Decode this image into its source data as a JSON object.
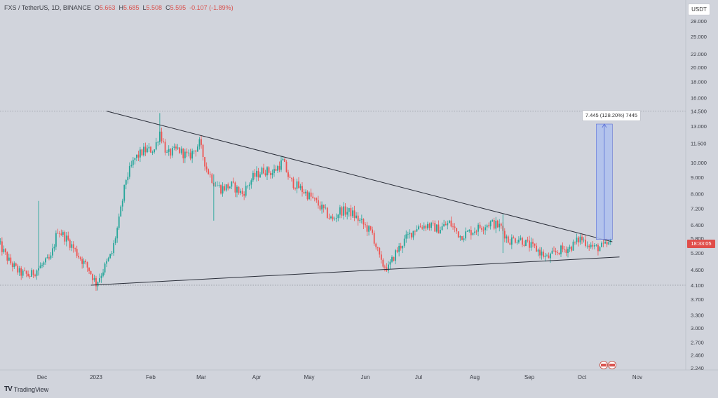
{
  "header": {
    "symbol": "FXS / TetherUS, 1D, BINANCE",
    "open_label": "O",
    "open": "5.663",
    "high_label": "H",
    "high": "5.685",
    "low_label": "L",
    "low": "5.508",
    "close_label": "C",
    "close": "5.595",
    "change": "-0.107 (-1.89%)"
  },
  "unit_badge": "USDT",
  "price_tag": "18:33:05",
  "measure_label": "7.445 (128.20%) 7445",
  "logo": {
    "mark": "TV",
    "text": "TradingView"
  },
  "colors": {
    "up": "#26a69a",
    "down": "#ef5350",
    "line": "#2a2e39",
    "measure_fill": "#aebfee",
    "measure_line": "#5b6fd6",
    "price_tag": "#e04e4a"
  },
  "chart_data": {
    "type": "candlestick",
    "y_scale": "log",
    "ylim": [
      2.16,
      36
    ],
    "y_ticks": [
      "28.000",
      "25.000",
      "22.000",
      "20.000",
      "18.000",
      "16.000",
      "14.500",
      "13.000",
      "11.500",
      "10.000",
      "9.000",
      "8.000",
      "7.200",
      "6.400",
      "5.800",
      "5.200",
      "4.600",
      "4.100",
      "3.700",
      "3.300",
      "3.000",
      "2.700",
      "2.460",
      "2.240"
    ],
    "x_ticks": [
      "Dec",
      "2023",
      "Feb",
      "Mar",
      "Apr",
      "May",
      "Jun",
      "Jul",
      "Aug",
      "Sep",
      "Oct",
      "Nov"
    ],
    "x_ticks_dates": [
      "2022-12-01",
      "2023-01-01",
      "2023-02-01",
      "2023-03-01",
      "2023-04-01",
      "2023-05-01",
      "2023-06-01",
      "2023-07-01",
      "2023-08-01",
      "2023-09-01",
      "2023-10-01",
      "2023-11-01"
    ],
    "xlim": [
      "2022-11-06",
      "2023-11-14"
    ],
    "close_path": [
      [
        "2022-11-06",
        5.6
      ],
      [
        "2022-11-12",
        4.9
      ],
      [
        "2022-11-18",
        4.5
      ],
      [
        "2022-11-24",
        4.4
      ],
      [
        "2022-11-30",
        4.7
      ],
      [
        "2022-12-06",
        5.0
      ],
      [
        "2022-12-10",
        6.2
      ],
      [
        "2022-12-16",
        5.7
      ],
      [
        "2022-12-22",
        5.1
      ],
      [
        "2022-12-28",
        4.6
      ],
      [
        "2023-01-01",
        4.15
      ],
      [
        "2023-01-06",
        4.7
      ],
      [
        "2023-01-10",
        5.2
      ],
      [
        "2023-01-14",
        6.6
      ],
      [
        "2023-01-18",
        8.9
      ],
      [
        "2023-01-23",
        10.3
      ],
      [
        "2023-01-28",
        10.9
      ],
      [
        "2023-02-03",
        11.0
      ],
      [
        "2023-02-06",
        12.5
      ],
      [
        "2023-02-10",
        10.6
      ],
      [
        "2023-02-16",
        11.0
      ],
      [
        "2023-02-22",
        10.4
      ],
      [
        "2023-02-28",
        11.5
      ],
      [
        "2023-03-04",
        9.6
      ],
      [
        "2023-03-08",
        8.7
      ],
      [
        "2023-03-12",
        8.3
      ],
      [
        "2023-03-18",
        8.5
      ],
      [
        "2023-03-24",
        8.0
      ],
      [
        "2023-03-30",
        9.0
      ],
      [
        "2023-04-05",
        9.5
      ],
      [
        "2023-04-10",
        9.3
      ],
      [
        "2023-04-16",
        10.1
      ],
      [
        "2023-04-20",
        8.8
      ],
      [
        "2023-04-26",
        8.3
      ],
      [
        "2023-05-02",
        7.8
      ],
      [
        "2023-05-08",
        7.2
      ],
      [
        "2023-05-14",
        6.6
      ],
      [
        "2023-05-18",
        7.1
      ],
      [
        "2023-05-24",
        7.0
      ],
      [
        "2023-05-30",
        6.5
      ],
      [
        "2023-06-05",
        6.0
      ],
      [
        "2023-06-10",
        4.8
      ],
      [
        "2023-06-14",
        4.65
      ],
      [
        "2023-06-18",
        5.2
      ],
      [
        "2023-06-24",
        5.8
      ],
      [
        "2023-06-30",
        6.3
      ],
      [
        "2023-07-06",
        6.4
      ],
      [
        "2023-07-12",
        6.2
      ],
      [
        "2023-07-18",
        6.5
      ],
      [
        "2023-07-24",
        5.9
      ],
      [
        "2023-07-30",
        6.1
      ],
      [
        "2023-08-04",
        6.3
      ],
      [
        "2023-08-10",
        6.5
      ],
      [
        "2023-08-16",
        6.3
      ],
      [
        "2023-08-20",
        5.7
      ],
      [
        "2023-08-26",
        5.8
      ],
      [
        "2023-09-01",
        5.5
      ],
      [
        "2023-09-06",
        5.3
      ],
      [
        "2023-09-11",
        5.0
      ],
      [
        "2023-09-18",
        5.3
      ],
      [
        "2023-09-24",
        5.4
      ],
      [
        "2023-09-30",
        5.8
      ],
      [
        "2023-10-04",
        5.6
      ],
      [
        "2023-10-08",
        5.4
      ],
      [
        "2023-10-13",
        5.45
      ],
      [
        "2023-10-17",
        5.6
      ]
    ],
    "trendlines": [
      {
        "name": "resistance",
        "from": [
          "2023-01-07",
          14.5
        ],
        "to": [
          "2023-10-18",
          5.65
        ]
      },
      {
        "name": "support",
        "from": [
          "2022-12-29",
          4.1
        ],
        "to": [
          "2023-10-22",
          5.05
        ]
      }
    ],
    "horizontal_levels": [
      14.5,
      4.1
    ],
    "measure": {
      "from_date": "2023-10-09",
      "to_date": "2023-10-18",
      "low": 5.75,
      "high": 13.2
    }
  }
}
